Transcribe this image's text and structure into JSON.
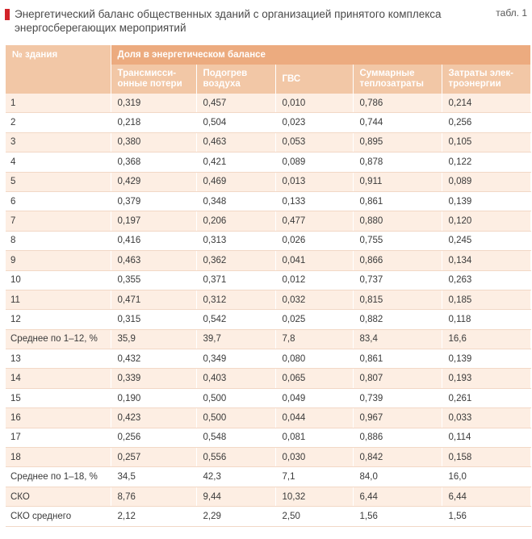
{
  "title": "Энергетический баланс общественных зданий с организацией принятого комплекса энергосберегающих мероприятий",
  "table_label": "табл. 1",
  "colors": {
    "marker": "#d2232a",
    "header_dark": "#ecab7f",
    "header_light": "#f2c7a6",
    "row_alt": "#fdeee3"
  },
  "header": {
    "building": "№ здания",
    "group": "Доля в энергетическом балансе",
    "columns": [
      "Трансмисси-онные потери",
      "Подогрев воздуха",
      "ГВС",
      "Суммарные теплозатраты",
      "Затраты элек-троэнергии"
    ]
  },
  "rows": [
    [
      "1",
      "0,319",
      "0,457",
      "0,010",
      "0,786",
      "0,214"
    ],
    [
      "2",
      "0,218",
      "0,504",
      "0,023",
      "0,744",
      "0,256"
    ],
    [
      "3",
      "0,380",
      "0,463",
      "0,053",
      "0,895",
      "0,105"
    ],
    [
      "4",
      "0,368",
      "0,421",
      "0,089",
      "0,878",
      "0,122"
    ],
    [
      "5",
      "0,429",
      "0,469",
      "0,013",
      "0,911",
      "0,089"
    ],
    [
      "6",
      "0,379",
      "0,348",
      "0,133",
      "0,861",
      "0,139"
    ],
    [
      "7",
      "0,197",
      "0,206",
      "0,477",
      "0,880",
      "0,120"
    ],
    [
      "8",
      "0,416",
      "0,313",
      "0,026",
      "0,755",
      "0,245"
    ],
    [
      "9",
      "0,463",
      "0,362",
      "0,041",
      "0,866",
      "0,134"
    ],
    [
      "10",
      "0,355",
      "0,371",
      "0,012",
      "0,737",
      "0,263"
    ],
    [
      "11",
      "0,471",
      "0,312",
      "0,032",
      "0,815",
      "0,185"
    ],
    [
      "12",
      "0,315",
      "0,542",
      "0,025",
      "0,882",
      "0,118"
    ],
    [
      "Среднее по 1–12, %",
      "35,9",
      "39,7",
      "7,8",
      "83,4",
      "16,6"
    ],
    [
      "13",
      "0,432",
      "0,349",
      "0,080",
      "0,861",
      "0,139"
    ],
    [
      "14",
      "0,339",
      "0,403",
      "0,065",
      "0,807",
      "0,193"
    ],
    [
      "15",
      "0,190",
      "0,500",
      "0,049",
      "0,739",
      "0,261"
    ],
    [
      "16",
      "0,423",
      "0,500",
      "0,044",
      "0,967",
      "0,033"
    ],
    [
      "17",
      "0,256",
      "0,548",
      "0,081",
      "0,886",
      "0,114"
    ],
    [
      "18",
      "0,257",
      "0,556",
      "0,030",
      "0,842",
      "0,158"
    ],
    [
      "Среднее по 1–18, %",
      "34,5",
      "42,3",
      "7,1",
      "84,0",
      "16,0"
    ],
    [
      "СКО",
      "8,76",
      "9,44",
      "10,32",
      "6,44",
      "6,44"
    ],
    [
      "СКО среднего",
      "2,12",
      "2,29",
      "2,50",
      "1,56",
      "1,56"
    ]
  ]
}
